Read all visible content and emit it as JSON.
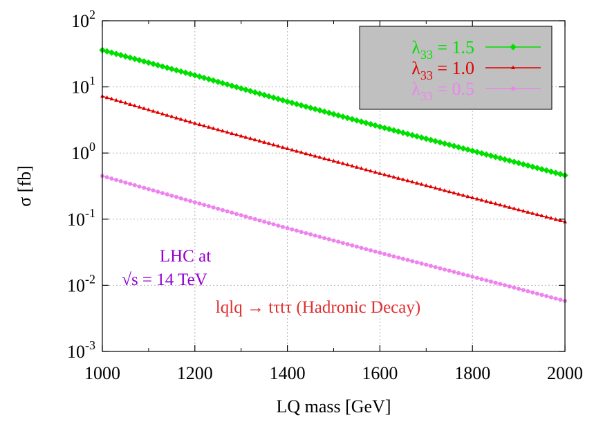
{
  "chart_data": {
    "type": "line",
    "xlabel": "LQ mass [GeV]",
    "ylabel": "σ [fb]",
    "xlim": [
      1000,
      2000
    ],
    "ylim": [
      0.001,
      100
    ],
    "yscale": "log",
    "grid": true,
    "legend_placement": "top-right",
    "x_ticks": [
      {
        "value": 1000,
        "label": "1000"
      },
      {
        "value": 1200,
        "label": "1200"
      },
      {
        "value": 1400,
        "label": "1400"
      },
      {
        "value": 1600,
        "label": "1600"
      },
      {
        "value": 1800,
        "label": "1800"
      },
      {
        "value": 2000,
        "label": "2000"
      }
    ],
    "y_ticks": [
      {
        "value": 100,
        "base": "10",
        "exp": "2"
      },
      {
        "value": 10,
        "base": "10",
        "exp": "1"
      },
      {
        "value": 1,
        "base": "10",
        "exp": "0"
      },
      {
        "value": 0.1,
        "base": "10",
        "exp": "-1"
      },
      {
        "value": 0.01,
        "base": "10",
        "exp": "-2"
      },
      {
        "value": 0.001,
        "base": "10",
        "exp": "-3"
      }
    ],
    "x": [
      1000,
      1200,
      1400,
      1600,
      1800,
      2000
    ],
    "series": [
      {
        "name_main": "λ",
        "name_sub": "33",
        "name_rest": " = 1.5",
        "color": "#00e000",
        "marker": "diamond",
        "y": [
          36,
          15,
          6.0,
          2.5,
          1.08,
          0.46
        ]
      },
      {
        "name_main": "λ",
        "name_sub": "33",
        "name_rest": " = 1.0",
        "color": "#e00000",
        "marker": "triangle",
        "y": [
          7.2,
          2.8,
          1.16,
          0.49,
          0.21,
          0.091
        ]
      },
      {
        "name_main": "λ",
        "name_sub": "33",
        "name_rest": " = 0.5",
        "color": "#ee82ee",
        "marker": "circle",
        "y": [
          0.45,
          0.18,
          0.073,
          0.031,
          0.0135,
          0.0058
        ]
      }
    ],
    "annotations": {
      "lhc_line1": "LHC at",
      "lhc_line2": "√s = 14 TeV",
      "lhc_color": "#9400d3",
      "process": "lqlq → tτtτ (Hadronic Decay)",
      "process_color": "#e03030"
    },
    "legend_bg": "#c0c0c0"
  }
}
